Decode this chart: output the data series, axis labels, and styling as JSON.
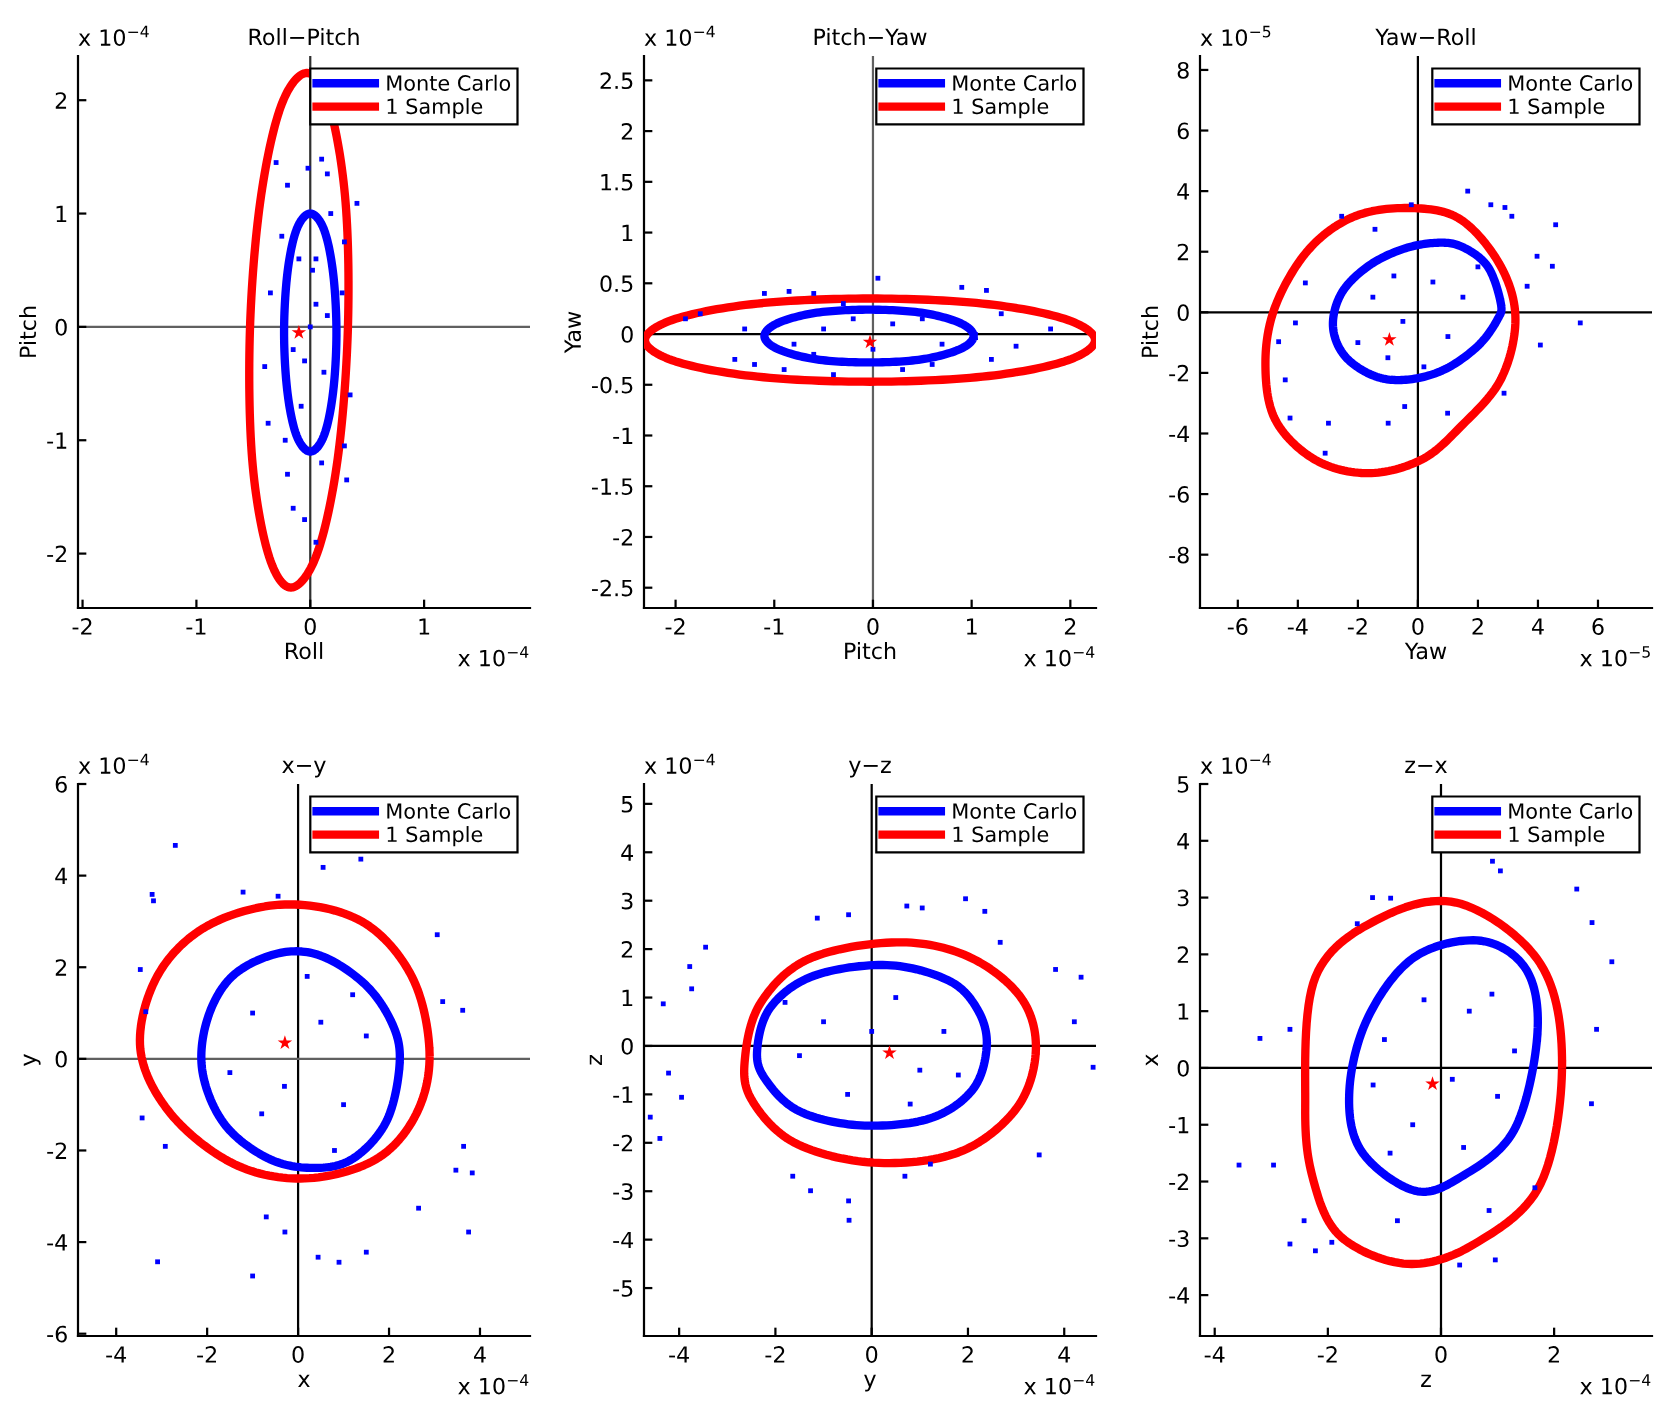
{
  "chart_data": [
    {
      "type": "scatter",
      "title": "Roll−Pitch",
      "xlabel": "Roll",
      "ylabel": "Pitch",
      "xlim": [
        -2.04,
        1.93
      ],
      "ylim": [
        -2.48,
        2.39
      ],
      "xticks": [
        -2,
        -1,
        0,
        1
      ],
      "yticks": [
        -2,
        -1,
        0,
        1,
        2
      ],
      "annotations": [
        "x 10$^{−4}$",
        "x 10$^{−4}$"
      ],
      "legend": "top right",
      "ref_lines": [
        {
          "axis": "x",
          "value": 0,
          "color": "#303030"
        },
        {
          "axis": "y",
          "value": 0,
          "color": "#606060"
        }
      ],
      "series": [
        {
          "marker": "square",
          "color": "#0000ff",
          "x": [
            -0.3,
            0.1,
            0.15,
            0.41,
            -0.2,
            -0.02,
            -0.25,
            0.3,
            -0.35,
            0.28,
            -0.1,
            0.05,
            -0.15,
            0.12,
            -0.4,
            0.35,
            -0.37,
            0.3,
            -0.2,
            0.1,
            -0.15,
            0.05,
            0.32,
            -0.05,
            0.0,
            0.05,
            -0.08,
            0.18,
            -0.22,
            0.02,
            -0.05,
            0.15
          ],
          "values": [
            1.45,
            1.48,
            1.35,
            1.09,
            1.25,
            1.4,
            0.8,
            0.75,
            0.3,
            0.3,
            0.6,
            0.2,
            -0.2,
            -0.4,
            -0.35,
            -0.6,
            -0.85,
            -1.05,
            -1.3,
            -1.2,
            -1.6,
            -1.9,
            -1.35,
            -1.7,
            0.0,
            0.6,
            -0.7,
            1.0,
            -1.0,
            0.5,
            -0.3,
            0.1
          ]
        },
        {
          "type": "line",
          "name": "Monte Carlo",
          "color": "#0000ff"
        },
        {
          "type": "line",
          "name": "1 Sample",
          "color": "#ff0000"
        },
        {
          "marker": "star",
          "color": "#ff0000",
          "x": [
            -0.1
          ],
          "values": [
            -0.05
          ]
        }
      ]
    },
    {
      "type": "scatter",
      "title": "Pitch−Yaw",
      "xlabel": "Pitch",
      "ylabel": "Yaw",
      "xlim": [
        -2.32,
        2.26
      ],
      "ylim": [
        -2.7,
        2.74
      ],
      "xticks": [
        -2,
        -1,
        0,
        1,
        2
      ],
      "yticks": [
        -2.5,
        -2,
        -1.5,
        -1,
        -0.5,
        0,
        0.5,
        1,
        1.5,
        2,
        2.5
      ],
      "annotations": [
        "x 10$^{−4}$",
        "x 10$^{−4}$"
      ],
      "legend": "top right",
      "ref_lines": [
        {
          "axis": "x",
          "value": 0,
          "color": "#606060"
        },
        {
          "axis": "y",
          "value": 0,
          "color": "#000000"
        }
      ],
      "series": [
        {
          "marker": "square",
          "color": "#0000ff",
          "x": [
            -1.1,
            -0.85,
            -0.6,
            0.9,
            1.15,
            0.05,
            1.8,
            -1.75,
            -1.9,
            1.45,
            -1.4,
            -1.2,
            -0.9,
            -0.4,
            0.3,
            0.6,
            1.2,
            -0.3,
            0.2,
            -0.5,
            0.7,
            -0.8,
            0.0,
            -0.2,
            1.3,
            -1.3,
            0.5,
            -0.6
          ],
          "values": [
            0.4,
            0.42,
            0.4,
            0.46,
            0.43,
            0.55,
            0.05,
            0.2,
            0.15,
            -0.12,
            -0.25,
            -0.3,
            -0.35,
            -0.4,
            -0.35,
            -0.3,
            -0.25,
            0.3,
            0.1,
            0.05,
            -0.1,
            -0.1,
            -0.15,
            0.15,
            0.2,
            0.05,
            0.15,
            -0.2
          ]
        },
        {
          "type": "line",
          "name": "Monte Carlo",
          "color": "#0000ff"
        },
        {
          "type": "line",
          "name": "1 Sample",
          "color": "#ff0000"
        },
        {
          "marker": "star",
          "color": "#ff0000",
          "x": [
            -0.03
          ],
          "values": [
            -0.08
          ]
        }
      ]
    },
    {
      "type": "scatter",
      "title": "Yaw−Roll",
      "xlabel": "Yaw",
      "ylabel": "Pitch",
      "xlim": [
        -7.26,
        7.8
      ],
      "ylim": [
        -9.76,
        8.46
      ],
      "xticks": [
        -6,
        -4,
        -2,
        0,
        2,
        4,
        6
      ],
      "yticks": [
        -8,
        -6,
        -4,
        -2,
        0,
        2,
        4,
        6,
        8
      ],
      "annotations": [
        "x 10$^{−5}$",
        "x 10$^{−5}$"
      ],
      "legend": "top right",
      "ref_lines": [
        {
          "axis": "x",
          "value": 0,
          "color": "#000000"
        },
        {
          "axis": "y",
          "value": 0,
          "color": "#000000"
        }
      ],
      "series": [
        {
          "marker": "square",
          "color": "#0000ff",
          "x": [
            1.66,
            2.43,
            2.9,
            4.59,
            3.13,
            3.97,
            4.48,
            3.64,
            5.41,
            4.08,
            2.87,
            0.99,
            -0.44,
            -0.99,
            -2.98,
            -3.09,
            -4.26,
            -4.42,
            -4.64,
            -4.08,
            -3.75,
            -2.54,
            -1.43,
            -0.22,
            -1.5,
            -1.0,
            0.5,
            1.5,
            -0.5,
            1.0,
            2.0,
            -2.0,
            0.2,
            -0.8
          ],
          "values": [
            4.0,
            3.55,
            3.46,
            2.89,
            3.17,
            1.85,
            1.52,
            0.86,
            -0.35,
            -1.08,
            -2.67,
            -3.33,
            -3.11,
            -3.66,
            -3.66,
            -4.65,
            -3.49,
            -2.23,
            -0.97,
            -0.35,
            0.97,
            3.17,
            2.74,
            3.55,
            0.5,
            -1.5,
            1.0,
            0.5,
            -0.3,
            -0.8,
            1.5,
            -1.0,
            -1.8,
            1.2
          ]
        },
        {
          "type": "line",
          "name": "Monte Carlo",
          "color": "#0000ff"
        },
        {
          "type": "line",
          "name": "1 Sample",
          "color": "#ff0000"
        },
        {
          "marker": "star",
          "color": "#ff0000",
          "x": [
            -0.95
          ],
          "values": [
            -0.9
          ]
        }
      ]
    },
    {
      "type": "scatter",
      "title": "x−y",
      "xlabel": "x",
      "ylabel": "y",
      "xlim": [
        -4.84,
        5.1
      ],
      "ylim": [
        -6.05,
        6
      ],
      "xticks": [
        -4,
        -2,
        0,
        2,
        4
      ],
      "yticks": [
        -6,
        -4,
        -2,
        0,
        2,
        4,
        6
      ],
      "annotations": [
        "x 10$^{−4}$",
        "x 10$^{−4}$"
      ],
      "legend": "top right",
      "ref_lines": [
        {
          "axis": "x",
          "value": 0,
          "color": "#000000"
        },
        {
          "axis": "y",
          "value": 0,
          "color": "#606060"
        }
      ],
      "series": [
        {
          "marker": "square",
          "color": "#0000ff",
          "x": [
            -2.7,
            -3.18,
            -1.21,
            -0.44,
            0.55,
            1.38,
            3.06,
            3.62,
            3.18,
            3.64,
            3.47,
            3.83,
            2.65,
            3.75,
            1.5,
            0.9,
            0.44,
            -1.0,
            -3.09,
            -0.29,
            -0.7,
            -3.43,
            -2.92,
            -3.35,
            -3.47,
            -3.21,
            -1,
            1,
            0.5,
            -0.8,
            1.5,
            -1.5,
            0.2,
            0.8,
            -0.3,
            1.2
          ],
          "values": [
            4.66,
            3.45,
            3.64,
            3.55,
            4.18,
            4.36,
            2.71,
            1.06,
            1.25,
            -1.91,
            -2.43,
            -2.49,
            -3.26,
            -3.78,
            -4.22,
            -4.44,
            -4.33,
            -4.74,
            -4.43,
            -3.78,
            -3.45,
            -1.29,
            -1.91,
            1.03,
            1.95,
            3.59,
            1,
            -1,
            0.8,
            -1.2,
            0.5,
            -0.3,
            1.8,
            -2.0,
            -0.6,
            1.4
          ]
        },
        {
          "type": "line",
          "name": "Monte Carlo",
          "color": "#0000ff"
        },
        {
          "type": "line",
          "name": "1 Sample",
          "color": "#ff0000"
        },
        {
          "marker": "star",
          "color": "#ff0000",
          "x": [
            -0.29
          ],
          "values": [
            0.35
          ]
        }
      ]
    },
    {
      "type": "scatter",
      "title": "y−z",
      "xlabel": "y",
      "ylabel": "z",
      "xlim": [
        -4.73,
        4.66
      ],
      "ylim": [
        -5.99,
        5.41
      ],
      "xticks": [
        -4,
        -2,
        0,
        2,
        4
      ],
      "yticks": [
        -5,
        -4,
        -3,
        -2,
        -1,
        0,
        1,
        2,
        3,
        4,
        5
      ],
      "annotations": [
        "x 10$^{−4}$",
        "x 10$^{−4}$"
      ],
      "legend": "top right",
      "ref_lines": [
        {
          "axis": "x",
          "value": 0,
          "color": "#000000"
        },
        {
          "axis": "y",
          "value": 0,
          "color": "#000000"
        }
      ],
      "series": [
        {
          "marker": "square",
          "color": "#0000ff",
          "x": [
            1.95,
            -1.13,
            -0.48,
            0.73,
            1.05,
            2.35,
            2.67,
            3.82,
            4.35,
            4.6,
            4.21,
            3.48,
            1.22,
            0.69,
            -0.48,
            -0.47,
            -1.27,
            -1.64,
            -3.95,
            -4.4,
            -4.6,
            -4.22,
            -4.33,
            -3.78,
            -3.74,
            -3.45,
            -1,
            1,
            0.5,
            -0.5,
            1.5,
            -1.5,
            0,
            0.8,
            -1.8,
            1.8
          ],
          "values": [
            3.04,
            2.64,
            2.71,
            2.89,
            2.85,
            2.78,
            2.14,
            1.58,
            1.42,
            -0.44,
            0.5,
            -2.25,
            -2.44,
            -2.69,
            -3.2,
            -3.6,
            -2.99,
            -2.69,
            -1.06,
            -1.91,
            -1.47,
            -0.56,
            0.87,
            1.64,
            1.18,
            2.04,
            0.5,
            -0.5,
            1.0,
            -1.0,
            0.3,
            -0.2,
            0.3,
            -1.2,
            0.9,
            -0.6
          ]
        },
        {
          "type": "line",
          "name": "Monte Carlo",
          "color": "#0000ff"
        },
        {
          "type": "line",
          "name": "1 Sample",
          "color": "#ff0000"
        },
        {
          "marker": "star",
          "color": "#ff0000",
          "x": [
            0.37
          ],
          "values": [
            -0.14
          ]
        }
      ]
    },
    {
      "type": "scatter",
      "title": "z−x",
      "xlabel": "z",
      "ylabel": "x",
      "xlim": [
        -4.26,
        3.73
      ],
      "ylim": [
        -4.72,
        5
      ],
      "xticks": [
        -4,
        -2,
        0,
        2
      ],
      "yticks": [
        -4,
        -3,
        -2,
        -1,
        0,
        1,
        2,
        3,
        4,
        5
      ],
      "annotations": [
        "x 10$^{−4}$",
        "x 10$^{−4}$"
      ],
      "legend": "top right",
      "ref_lines": [
        {
          "axis": "x",
          "value": 0,
          "color": "#000000"
        },
        {
          "axis": "y",
          "value": 0,
          "color": "#000000"
        }
      ],
      "series": [
        {
          "marker": "square",
          "color": "#0000ff",
          "x": [
            0.91,
            1.05,
            2.4,
            2.67,
            3.02,
            2.75,
            2.66,
            1.66,
            0.85,
            0.96,
            0.33,
            -0.77,
            -1.93,
            -2.22,
            -2.67,
            -2.42,
            -3.57,
            -2.96,
            -3.2,
            -2.67,
            -0.89,
            -1.21,
            -1.48,
            -1,
            1,
            0.5,
            -0.5,
            0.9,
            -0.9,
            0.2,
            -1.2,
            1.3,
            0.4,
            -0.3
          ],
          "values": [
            3.64,
            3.47,
            3.15,
            2.56,
            1.87,
            0.68,
            -0.63,
            -2.11,
            -2.51,
            -3.38,
            -3.47,
            -2.69,
            -3.07,
            -3.22,
            -3.1,
            -2.69,
            -1.71,
            -1.71,
            0.52,
            0.68,
            2.99,
            3.0,
            2.54,
            0.5,
            -0.5,
            1.0,
            -1.0,
            1.3,
            -1.5,
            -0.2,
            -0.3,
            0.3,
            -1.4,
            1.2
          ]
        },
        {
          "type": "line",
          "name": "Monte Carlo",
          "color": "#0000ff"
        },
        {
          "type": "line",
          "name": "1 Sample",
          "color": "#ff0000"
        },
        {
          "marker": "star",
          "color": "#ff0000",
          "x": [
            -0.15
          ],
          "values": [
            -0.28
          ]
        }
      ]
    }
  ]
}
